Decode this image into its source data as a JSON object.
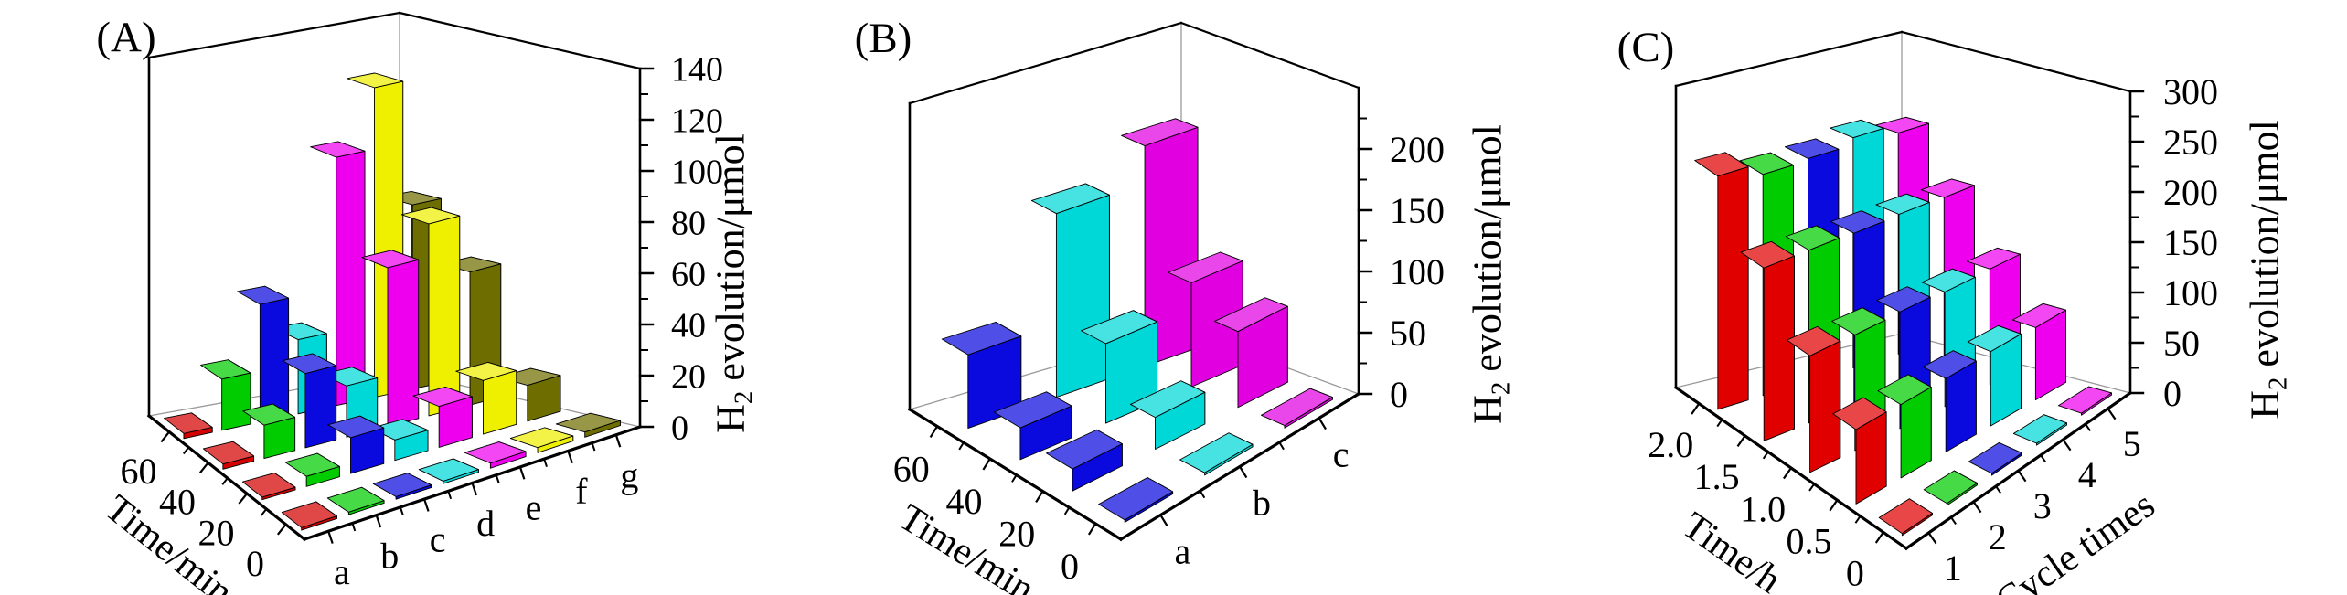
{
  "figure": {
    "background": "#ffffff",
    "description": "Three 3D bar chart panels of photocatalytic H2 evolution"
  },
  "chart_data": [
    {
      "id": "A",
      "type": "bar",
      "subtype": "bar3d",
      "panel_tag": "(A)",
      "x_axis": {
        "label": "",
        "categories": [
          "a",
          "b",
          "c",
          "d",
          "e",
          "f",
          "g"
        ]
      },
      "depth_axis": {
        "label": "Time/min",
        "values": [
          "0",
          "20",
          "40",
          "60"
        ]
      },
      "z_axis": {
        "label": "H₂ evolution/μmol",
        "ticks": [
          0,
          20,
          40,
          60,
          80,
          100,
          120,
          140
        ],
        "range": [
          0,
          140
        ]
      },
      "grid": "back-edges-only",
      "legend": "none",
      "series": [
        {
          "name": "a",
          "color": "#D40000",
          "values": [
            1,
            1,
            2,
            2
          ]
        },
        {
          "name": "b",
          "color": "#00CC00",
          "values": [
            1,
            4,
            13,
            20
          ]
        },
        {
          "name": "c",
          "color": "#0A0ADF",
          "values": [
            1,
            14,
            29,
            46
          ]
        },
        {
          "name": "d",
          "color": "#00D8D8",
          "values": [
            1,
            8,
            20,
            29
          ]
        },
        {
          "name": "e",
          "color": "#EE00EE",
          "values": [
            2,
            16,
            62,
            97
          ]
        },
        {
          "name": "f",
          "color": "#EFEF00",
          "values": [
            2,
            21,
            75,
            121
          ]
        },
        {
          "name": "g",
          "color": "#6E6E00",
          "values": [
            2,
            14,
            52,
            72
          ]
        }
      ]
    },
    {
      "id": "B",
      "type": "bar",
      "subtype": "bar3d",
      "panel_tag": "(B)",
      "x_axis": {
        "label": "",
        "categories": [
          "a",
          "b",
          "c"
        ]
      },
      "depth_axis": {
        "label": "Time/min",
        "values": [
          "0",
          "20",
          "40",
          "60"
        ]
      },
      "z_axis": {
        "label": "H₂ evolution/μmol",
        "ticks": [
          0,
          50,
          100,
          150,
          200
        ],
        "range": [
          0,
          250
        ]
      },
      "grid": "back-edges-only",
      "legend": "none",
      "series": [
        {
          "name": "a",
          "color": "#0A0ADF",
          "values": [
            2,
            18,
            26,
            60
          ]
        },
        {
          "name": "b",
          "color": "#00D8D8",
          "values": [
            2,
            26,
            65,
            150
          ]
        },
        {
          "name": "c",
          "color": "#E000E0",
          "values": [
            2,
            62,
            85,
            180
          ]
        }
      ]
    },
    {
      "id": "C",
      "type": "bar",
      "subtype": "bar3d",
      "panel_tag": "(C)",
      "x_axis": {
        "label": "Cycle times",
        "categories": [
          "1",
          "2",
          "3",
          "4",
          "5"
        ]
      },
      "depth_axis": {
        "label": "Time/h",
        "values": [
          "0",
          "0.5",
          "1.0",
          "1.5",
          "2.0"
        ]
      },
      "z_axis": {
        "label": "H₂ evolution/μmol",
        "ticks": [
          0,
          50,
          100,
          150,
          200,
          250,
          300
        ],
        "range": [
          0,
          300
        ]
      },
      "grid": "back-edges-only",
      "legend": "none",
      "series": [
        {
          "name": "1",
          "color": "#E00000",
          "values": [
            2,
            74,
            116,
            172,
            232
          ]
        },
        {
          "name": "2",
          "color": "#00CC00",
          "values": [
            2,
            73,
            115,
            172,
            220
          ]
        },
        {
          "name": "3",
          "color": "#0A0ADF",
          "values": [
            2,
            73,
            116,
            171,
            222
          ]
        },
        {
          "name": "4",
          "color": "#00D8D8",
          "values": [
            2,
            74,
            114,
            172,
            229
          ]
        },
        {
          "name": "5",
          "color": "#EE00EE",
          "values": [
            2,
            72,
            115,
            171,
            220
          ]
        }
      ]
    }
  ]
}
